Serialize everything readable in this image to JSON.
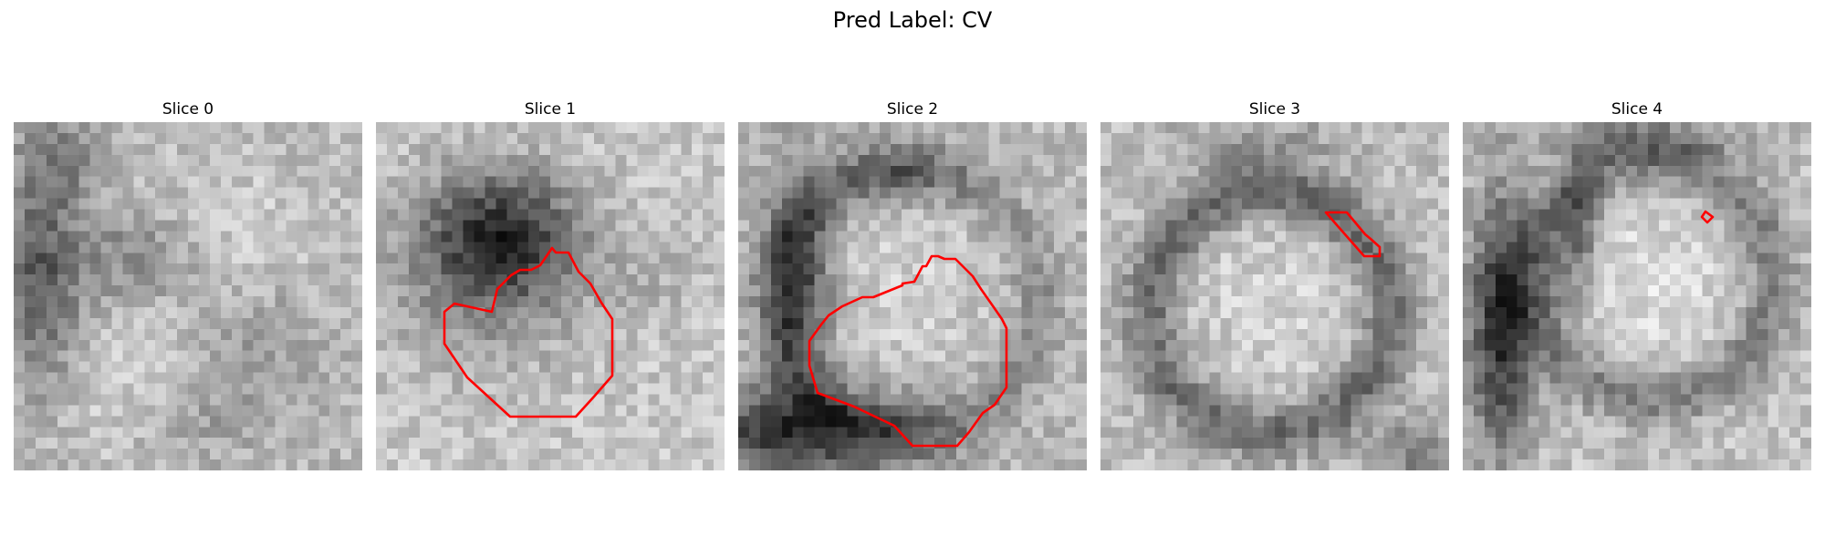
{
  "figure": {
    "title": "Pred Label: CV"
  },
  "panels": [
    {
      "title": "Slice 0",
      "contour": []
    },
    {
      "title": "Slice 1",
      "contour": []
    },
    {
      "title": "Slice 2",
      "contour": []
    },
    {
      "title": "Slice 3",
      "contour": []
    },
    {
      "title": "Slice 4",
      "contour": []
    }
  ],
  "colors": {
    "contour": "#ff0000"
  }
}
